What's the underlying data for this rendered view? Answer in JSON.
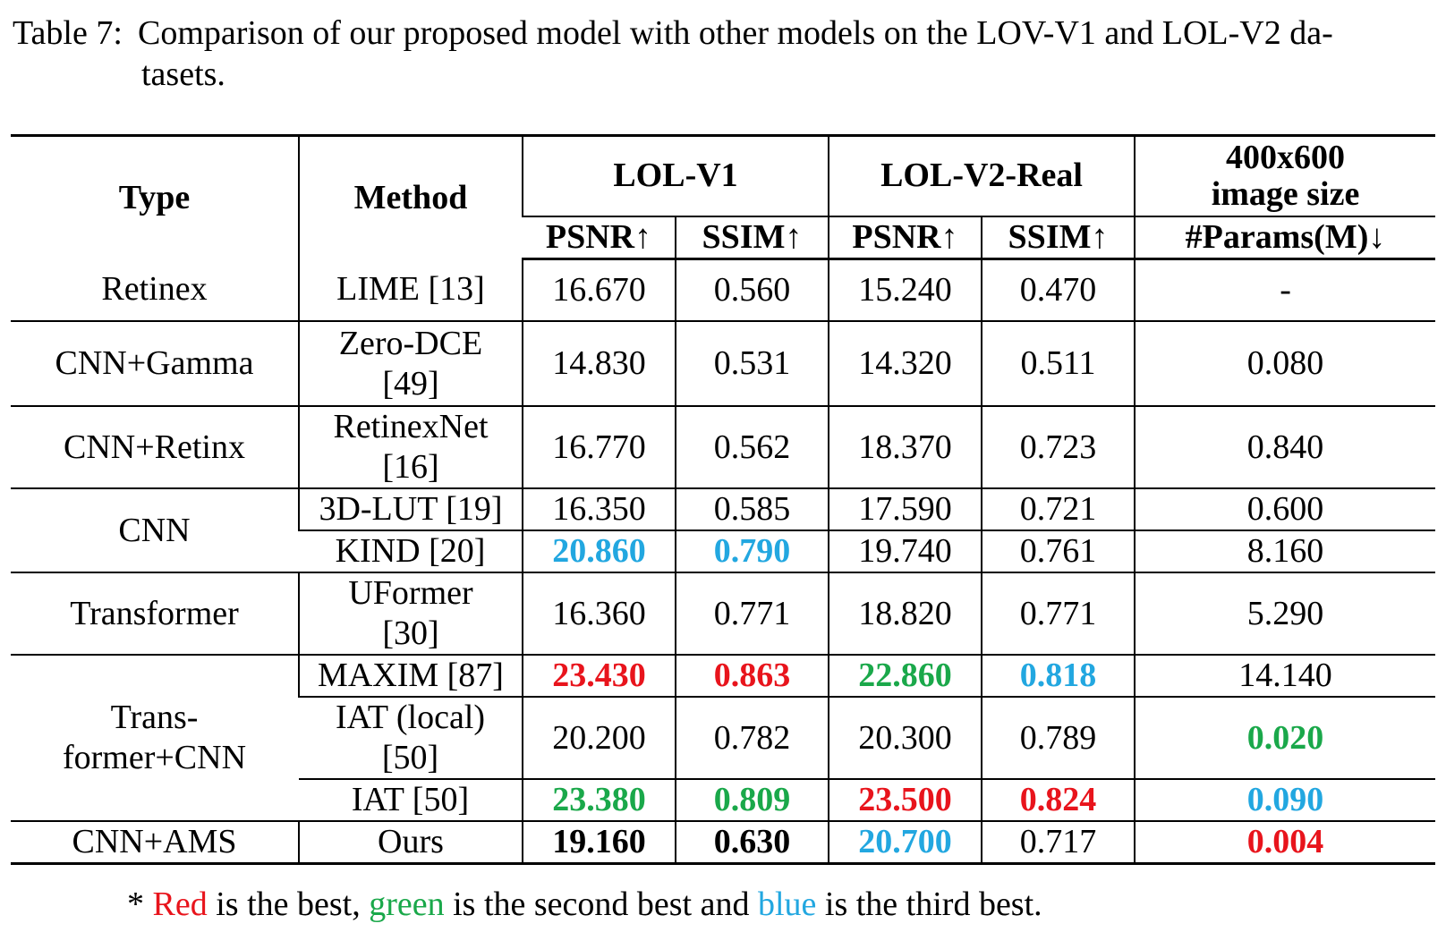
{
  "caption": {
    "label": "Table 7:",
    "line1": "Comparison of our proposed model with other models on the LOV-V1 and LOL-V2 da-",
    "line2": "tasets."
  },
  "headers": {
    "type": "Type",
    "method": "Method",
    "lol_v1": "LOL-V1",
    "lol_v2": "LOL-V2-Real",
    "size_line1": "400x600",
    "size_line2": "image size",
    "psnr": "PSNR↑",
    "ssim": "SSIM↑",
    "params": "#Params(M)↓"
  },
  "rows": [
    {
      "type": "Retinex",
      "method": "LIME [13]",
      "v1_psnr": "16.670",
      "v1_ssim": "0.560",
      "v2_psnr": "15.240",
      "v2_ssim": "0.470",
      "params": "-"
    },
    {
      "type": "CNN+Gamma",
      "method": "Zero-DCE [49]",
      "v1_psnr": "14.830",
      "v1_ssim": "0.531",
      "v2_psnr": "14.320",
      "v2_ssim": "0.511",
      "params": "0.080"
    },
    {
      "type": "CNN+Retinx",
      "method": "RetinexNet [16]",
      "v1_psnr": "16.770",
      "v1_ssim": "0.562",
      "v2_psnr": "18.370",
      "v2_ssim": "0.723",
      "params": "0.840"
    },
    {
      "type": "CNN",
      "method": "3D-LUT [19]",
      "v1_psnr": "16.350",
      "v1_ssim": "0.585",
      "v2_psnr": "17.590",
      "v2_ssim": "0.721",
      "params": "0.600"
    },
    {
      "type": "",
      "method": "KIND [20]",
      "v1_psnr": "20.860",
      "v1_ssim": "0.790",
      "v2_psnr": "19.740",
      "v2_ssim": "0.761",
      "params": "8.160"
    },
    {
      "type": "Transformer",
      "method": "UFormer [30]",
      "v1_psnr": "16.360",
      "v1_ssim": "0.771",
      "v2_psnr": "18.820",
      "v2_ssim": "0.771",
      "params": "5.290"
    },
    {
      "type": "Trans- former+CNN",
      "method": "MAXIM [87]",
      "v1_psnr": "23.430",
      "v1_ssim": "0.863",
      "v2_psnr": "22.860",
      "v2_ssim": "0.818",
      "params": "14.140"
    },
    {
      "type": "",
      "method": "IAT (local) [50]",
      "v1_psnr": "20.200",
      "v1_ssim": "0.782",
      "v2_psnr": "20.300",
      "v2_ssim": "0.789",
      "params": "0.020"
    },
    {
      "type": "",
      "method": "IAT [50]",
      "v1_psnr": "23.380",
      "v1_ssim": "0.809",
      "v2_psnr": "23.500",
      "v2_ssim": "0.824",
      "params": "0.090"
    },
    {
      "type": "CNN+AMS",
      "method": "Ours",
      "v1_psnr": "19.160",
      "v1_ssim": "0.630",
      "v2_psnr": "20.700",
      "v2_ssim": "0.717",
      "params": "0.004"
    }
  ],
  "highlight_colors": {
    "best": "#e8141c",
    "second": "#1aa84a",
    "third": "#22a7e0"
  },
  "footnote": {
    "star": "*",
    "red": "Red",
    "part1": "is the best,",
    "green": "green",
    "part2": "is the second best and",
    "blue": "blue",
    "part3": "is the third best."
  }
}
